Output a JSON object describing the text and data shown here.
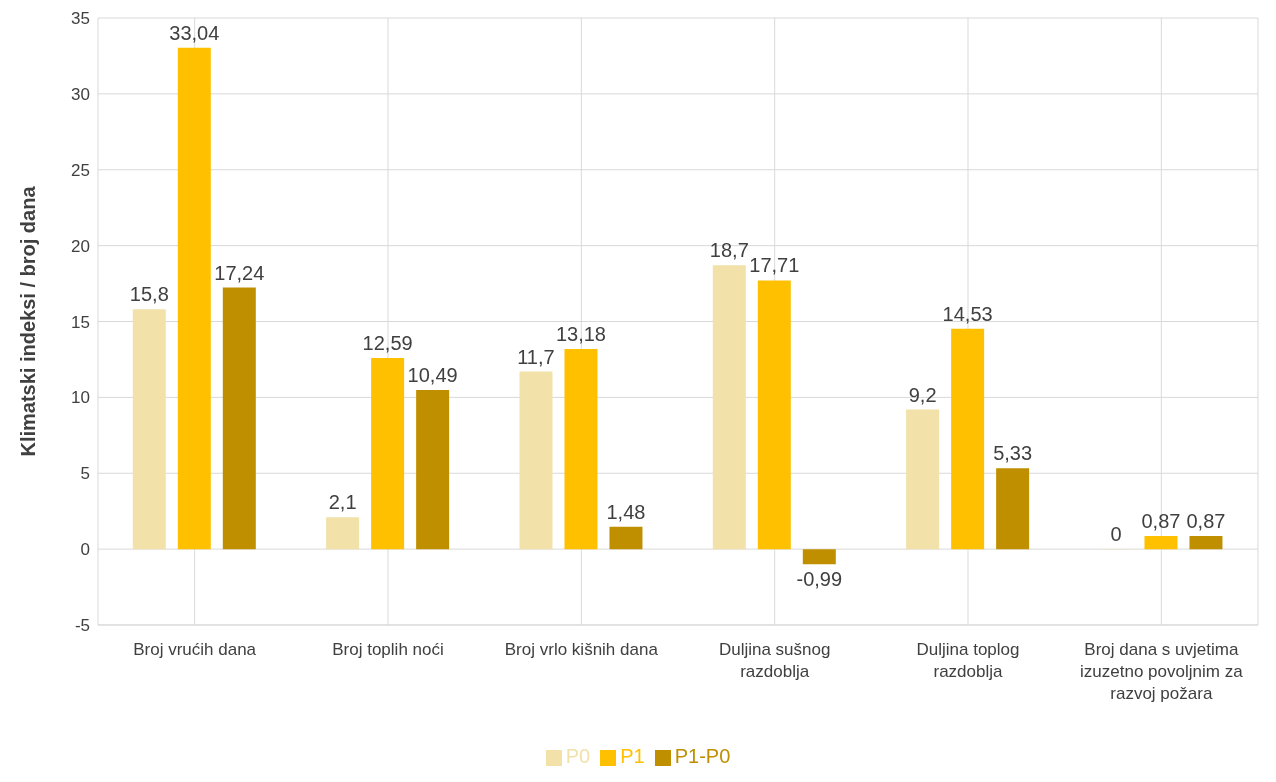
{
  "chart_data": {
    "type": "bar",
    "ylabel": "Klimatski indeksi / broj dana",
    "categories": [
      "Broj vrućih dana",
      "Broj toplih noći",
      "Broj vrlo kišnih dana",
      "Duljina sušnog razdoblja",
      "Duljina toplog razdoblja",
      "Broj dana s uvjetima izuzetno povoljnim za razvoj požara"
    ],
    "series": [
      {
        "name": "P0",
        "color": "#f2e1a8",
        "values": [
          15.8,
          2.1,
          11.7,
          18.7,
          9.2,
          0
        ],
        "value_labels": [
          "15,8",
          "2,1",
          "11,7",
          "18,7",
          "9,2",
          "0"
        ]
      },
      {
        "name": "P1",
        "color": "#ffc000",
        "values": [
          33.04,
          12.59,
          13.18,
          17.71,
          14.53,
          0.87
        ],
        "value_labels": [
          "33,04",
          "12,59",
          "13,18",
          "17,71",
          "14,53",
          "0,87"
        ]
      },
      {
        "name": "P1-P0",
        "color": "#bf8f00",
        "values": [
          17.24,
          10.49,
          1.48,
          -0.99,
          5.33,
          0.87
        ],
        "value_labels": [
          "17,24",
          "10,49",
          "1,48",
          "-0,99",
          "5,33",
          "0,87"
        ]
      }
    ],
    "ylim": [
      -5,
      35
    ],
    "yticks": [
      -5,
      0,
      5,
      10,
      15,
      20,
      25,
      30,
      35
    ],
    "grid": true,
    "legend": "bottom"
  }
}
